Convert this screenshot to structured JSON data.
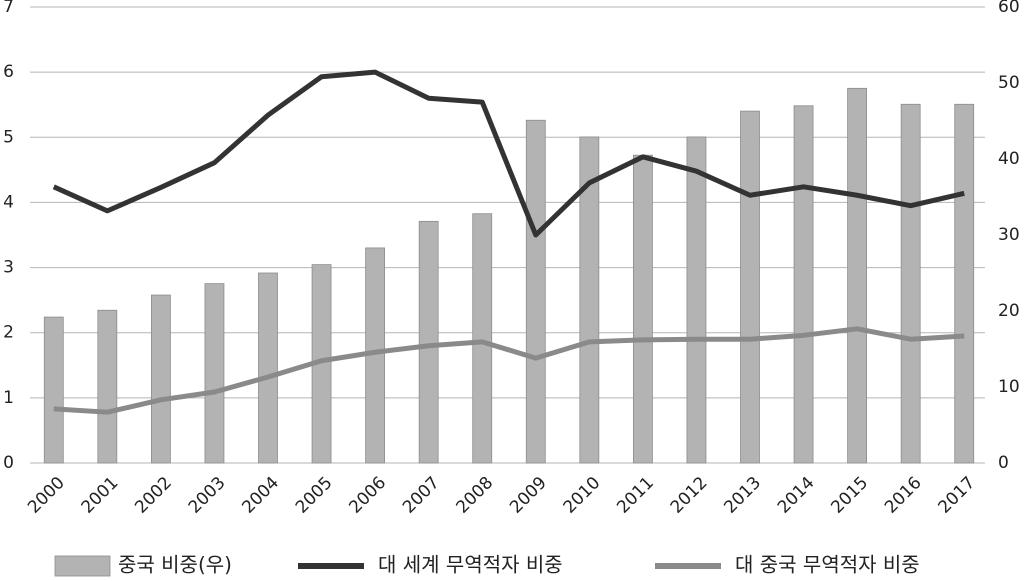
{
  "chart_data": {
    "type": "bar",
    "categories": [
      "2000",
      "2001",
      "2002",
      "2003",
      "2004",
      "2005",
      "2006",
      "2007",
      "2008",
      "2009",
      "2010",
      "2011",
      "2012",
      "2013",
      "2014",
      "2015",
      "2016",
      "2017"
    ],
    "series": [
      {
        "name": "중국 비중(우)",
        "type": "bar",
        "axis": "y2",
        "color": "#b3b3b3",
        "values": [
          19.2,
          20.1,
          22.1,
          23.6,
          25.0,
          26.1,
          28.3,
          31.8,
          32.8,
          45.1,
          42.9,
          40.5,
          42.9,
          46.3,
          47.0,
          49.3,
          47.2,
          47.2
        ]
      },
      {
        "name": "대 세계 무역적자 비중",
        "type": "line",
        "color": "#333333",
        "values": [
          4.24,
          3.87,
          4.23,
          4.61,
          5.34,
          5.93,
          6.0,
          5.6,
          5.54,
          3.5,
          4.3,
          4.7,
          4.48,
          4.11,
          4.24,
          4.11,
          3.95,
          4.14
        ]
      },
      {
        "name": "대 중국 무역적자 비중",
        "type": "line",
        "color": "#8a8a8a",
        "values": [
          0.83,
          0.78,
          0.97,
          1.09,
          1.32,
          1.57,
          1.7,
          1.8,
          1.86,
          1.61,
          1.86,
          1.89,
          1.9,
          1.9,
          1.96,
          2.06,
          1.9,
          1.95
        ]
      }
    ],
    "ylim": [
      0,
      7
    ],
    "yticks": [
      0,
      1,
      2,
      3,
      4,
      5,
      6,
      7
    ],
    "y2lim": [
      0,
      60
    ],
    "y2ticks": [
      0,
      10,
      20,
      30,
      40,
      50,
      60
    ],
    "grid": true,
    "legend": "bottom"
  }
}
